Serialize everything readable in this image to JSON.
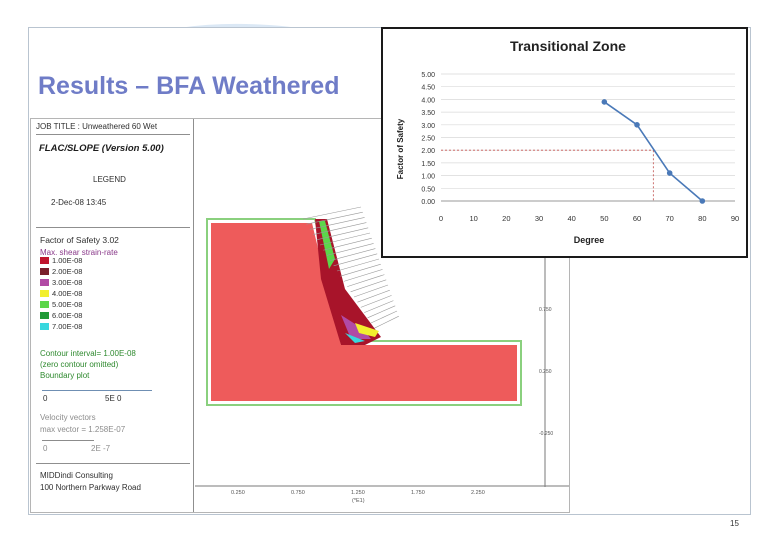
{
  "slide": {
    "title": "Results – BFA Weathered",
    "page_number": "15"
  },
  "flac": {
    "job_title": "JOB TITLE : Unweathered 60 Wet",
    "code": "FLAC/SLOPE (Version 5.00)",
    "legend_label": "LEGEND",
    "date": "2-Dec-08 13:45",
    "factor_of_safety": "Factor of Safety 3.02",
    "strain_label": "Max. shear strain-rate",
    "contours": [
      {
        "label": "1.00E-08",
        "color": "#c0142d"
      },
      {
        "label": "2.00E-08",
        "color": "#7a1f2b"
      },
      {
        "label": "3.00E-08",
        "color": "#b14aa5"
      },
      {
        "label": "4.00E-08",
        "color": "#f2ef2e"
      },
      {
        "label": "5.00E-08",
        "color": "#5bd64a"
      },
      {
        "label": "6.00E-08",
        "color": "#1f9a36"
      },
      {
        "label": "7.00E-08",
        "color": "#38d7de"
      }
    ],
    "contour_interval": "Contour interval= 1.00E-08",
    "zero_omitted": "(zero contour omitted)",
    "boundary_plot": "Boundary plot",
    "boundary_scale_left": "0",
    "boundary_scale_right": "5E 0",
    "velocity_vectors": "Velocity vectors",
    "max_vector": "max vector =    1.258E-07",
    "vector_scale_left": "0",
    "vector_scale_right": "2E -7",
    "company": "MIDDindi Consulting",
    "address": "100 Northern Parkway Road",
    "x_ticks": [
      "0.250",
      "0.750",
      "1.250",
      "1.750",
      "2.250"
    ],
    "x_unit": "(*E1)",
    "y_ticks": [
      "0.750",
      "0.250",
      "-0.250"
    ],
    "colors": {
      "body": "#ee5b5b",
      "outline": "#8ad07e"
    }
  },
  "chart_data": {
    "type": "line",
    "title": "Transitional Zone",
    "xlabel": "Degree",
    "ylabel": "Factor of Safety",
    "x": [
      50,
      60,
      70,
      80
    ],
    "series": [
      {
        "values": [
          3.9,
          3.0,
          1.1,
          0.0
        ],
        "color": "#4a79b8"
      }
    ],
    "xlim": [
      0,
      90
    ],
    "ylim": [
      0,
      5
    ],
    "x_ticks": [
      "0",
      "10",
      "20",
      "30",
      "40",
      "50",
      "60",
      "70",
      "80",
      "90"
    ],
    "y_ticks": [
      "0.00",
      "0.50",
      "1.00",
      "1.50",
      "2.00",
      "2.50",
      "3.00",
      "3.50",
      "4.00",
      "4.50",
      "5.00"
    ],
    "reference": {
      "x": 65,
      "y": 2.0,
      "color": "#c0504d"
    },
    "grid": true,
    "legend": "none"
  }
}
